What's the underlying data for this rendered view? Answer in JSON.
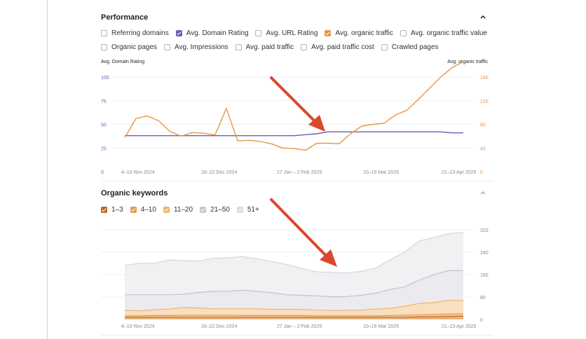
{
  "colors": {
    "purple": "#6b5fb0",
    "orange": "#e8964a",
    "kw_1_3": "#c06a22",
    "kw_4_10": "#e39a4c",
    "kw_11_20": "#f0b46a",
    "kw_21_50": "#c8c8cc",
    "kw_51_plus": "#dcdce0",
    "arrow": "#d9482e"
  },
  "performance": {
    "title": "Performance",
    "collapse_icon": "chevron-up-icon",
    "metrics_row1": [
      {
        "label": "Referring domains",
        "checked": false,
        "color": ""
      },
      {
        "label": "Avg. Domain Rating",
        "checked": true,
        "color": "#6b5fb0"
      },
      {
        "label": "Avg. URL Rating",
        "checked": false,
        "color": ""
      },
      {
        "label": "Avg. organic traffic",
        "checked": true,
        "color": "#e8964a"
      },
      {
        "label": "Avg. organic traffic value",
        "checked": false,
        "color": ""
      }
    ],
    "metrics_row2": [
      {
        "label": "Organic pages",
        "checked": false,
        "color": ""
      },
      {
        "label": "Avg. Impressions",
        "checked": false,
        "color": ""
      },
      {
        "label": "Avg. paid traffic",
        "checked": false,
        "color": ""
      },
      {
        "label": "Avg. paid traffic cost",
        "checked": false,
        "color": ""
      },
      {
        "label": "Crawled pages",
        "checked": false,
        "color": ""
      }
    ],
    "left_axis_title": "Avg. Domain Rating",
    "right_axis_title": "Avg. organic traffic"
  },
  "organic_keywords": {
    "title": "Organic keywords",
    "collapse_icon": "chevron-up-icon",
    "legend": [
      {
        "label": "1–3",
        "checked": true,
        "color": "#c06a22"
      },
      {
        "label": "4–10",
        "checked": true,
        "color": "#e39a4c"
      },
      {
        "label": "11–20",
        "checked": true,
        "color": "#f0b46a"
      },
      {
        "label": "21–50",
        "checked": true,
        "color": "#c8c8cc"
      },
      {
        "label": "51+",
        "checked": true,
        "color": "#dcdce0"
      }
    ]
  },
  "chart_data": [
    {
      "type": "line",
      "x_tick_labels": [
        "4–10 Nov 2024",
        "16–22 Dec 2024",
        "27 Jan – 2 Feb 2025",
        "10–16 Mar 2025",
        "21–23 Apr 2025"
      ],
      "left_axis": {
        "title": "Avg. Domain Rating",
        "ticks": [
          0,
          25,
          50,
          75,
          100
        ],
        "range": [
          0,
          100
        ]
      },
      "right_axis": {
        "title": "Avg. organic traffic",
        "ticks": [
          0,
          40,
          80,
          120,
          160
        ],
        "range": [
          0,
          160
        ]
      },
      "grid": true,
      "series": [
        {
          "name": "Avg. Domain Rating",
          "axis": "left",
          "color": "#6b5fb0",
          "values": [
            38,
            38,
            38,
            38,
            38,
            38,
            38,
            38,
            38,
            38,
            38,
            38,
            38,
            38,
            38,
            38,
            39,
            40,
            42,
            42,
            42,
            42,
            42,
            42,
            42,
            42,
            42,
            42,
            42,
            41,
            41
          ]
        },
        {
          "name": "Avg. organic traffic",
          "axis": "right",
          "color": "#e8964a",
          "values": [
            58,
            90,
            94,
            86,
            68,
            60,
            66,
            65,
            62,
            107,
            52,
            53,
            51,
            47,
            40,
            39,
            36,
            48,
            48,
            47,
            64,
            77,
            80,
            82,
            96,
            104,
            122,
            141,
            160,
            176,
            186
          ]
        }
      ]
    },
    {
      "type": "area",
      "stacked": true,
      "x_tick_labels": [
        "4–10 Nov 2024",
        "16–22 Dec 2024",
        "27 Jan – 2 Feb 2025",
        "10–16 Mar 2025",
        "21–23 Apr 2025"
      ],
      "right_axis": {
        "ticks": [
          0,
          80,
          160,
          240,
          320
        ],
        "range": [
          0,
          340
        ]
      },
      "grid": true,
      "series_cumulative": [
        {
          "name": "1–3",
          "color": "#c06a22",
          "values": [
            8,
            8,
            8,
            8,
            8,
            8,
            8,
            8,
            8,
            8,
            8,
            8,
            8,
            8,
            8,
            8,
            8,
            8,
            8,
            8,
            9,
            10,
            11,
            12
          ]
        },
        {
          "name": "4–10",
          "color": "#e39a4c",
          "values": [
            13,
            13,
            14,
            14,
            15,
            15,
            15,
            15,
            14,
            14,
            14,
            14,
            14,
            13,
            13,
            13,
            13,
            13,
            14,
            15,
            16,
            18,
            19,
            20
          ]
        },
        {
          "name": "11–20",
          "color": "#f0b46a",
          "values": [
            32,
            31,
            34,
            37,
            42,
            41,
            38,
            38,
            38,
            38,
            36,
            36,
            36,
            33,
            32,
            32,
            33,
            37,
            39,
            47,
            57,
            60,
            68,
            68
          ]
        },
        {
          "name": "21–50",
          "color": "#c8c8cc",
          "values": [
            88,
            88,
            88,
            88,
            90,
            96,
            100,
            100,
            104,
            100,
            95,
            88,
            86,
            84,
            81,
            81,
            86,
            93,
            106,
            116,
            140,
            160,
            174,
            174
          ]
        },
        {
          "name": "51+",
          "color": "#dcdce0",
          "values": [
            193,
            200,
            200,
            212,
            210,
            208,
            218,
            220,
            224,
            216,
            206,
            196,
            182,
            170,
            168,
            166,
            171,
            182,
            212,
            240,
            280,
            292,
            306,
            310
          ]
        }
      ]
    }
  ]
}
